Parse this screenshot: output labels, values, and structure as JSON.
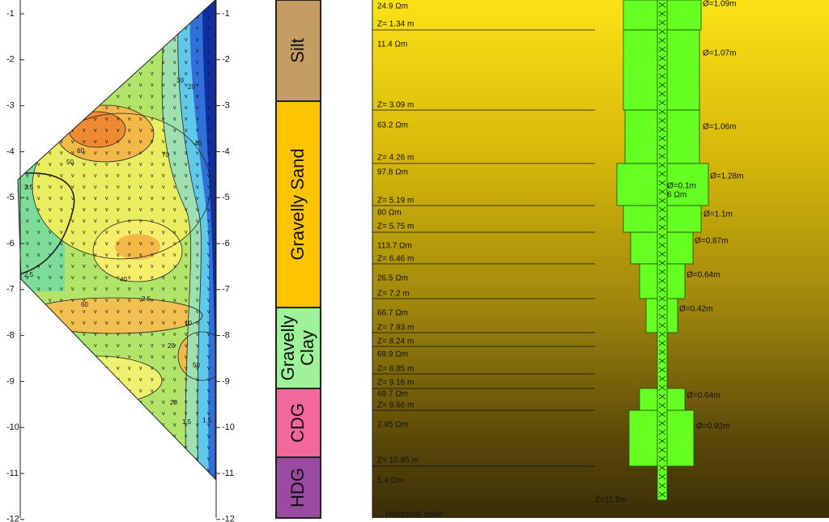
{
  "section": {
    "left_axis_ticks": [
      "-1",
      "-2",
      "-3",
      "-4",
      "-5",
      "-6",
      "-7",
      "-8",
      "-9",
      "-10",
      "-11",
      "-12"
    ],
    "right_axis_ticks": [
      "-1",
      "-2",
      "-3",
      "-4",
      "-5",
      "-6",
      "-7",
      "-8",
      "-9",
      "-10",
      "-11",
      "-12"
    ],
    "contour_labels": [
      "60",
      "50",
      "70",
      "40",
      "30",
      "20",
      "10",
      "2.5",
      "1.5",
      "2.5",
      "40",
      "60",
      "20",
      "50",
      "20",
      "1.5",
      "2.5"
    ]
  },
  "strata": [
    {
      "lines": [
        "Silt"
      ],
      "color": "#c59c62"
    },
    {
      "lines": [
        "Gravelly Sand"
      ],
      "color": "#ffc400"
    },
    {
      "lines": [
        "Gravelly",
        "Clay"
      ],
      "color": "#9ef29a"
    },
    {
      "lines": [
        "CDG"
      ],
      "color": "#f2689a"
    },
    {
      "lines": [
        "HDG"
      ],
      "color": "#9a4aa0"
    }
  ],
  "model": {
    "layers": [
      {
        "resistivity": "24.9 Ωm",
        "bottom": "Z= 1.34 m"
      },
      {
        "resistivity": "11.4 Ωm",
        "bottom": "Z= 3.09 m"
      },
      {
        "resistivity": "63.2 Ωm",
        "bottom": "Z= 4.26 m"
      },
      {
        "resistivity": "97.8 Ωm",
        "bottom": "Z= 5.19 m"
      },
      {
        "resistivity": "80 Ωm",
        "bottom": "Z= 5.75 m"
      },
      {
        "resistivity": "113.7 Ωm",
        "bottom": "Z= 6.46 m"
      },
      {
        "resistivity": "26.5 Ωm",
        "bottom": "Z= 7.2 m"
      },
      {
        "resistivity": "66.7 Ωm",
        "bottom": "Z= 7.93 m"
      },
      {
        "bottom": "Z= 8.24 m"
      },
      {
        "resistivity": "69.9 Ωm",
        "bottom": "Z= 8.85 m"
      },
      {
        "bottom": "Z= 9.16 m"
      },
      {
        "resistivity": "69.7 Ωm",
        "bottom": "Z= 9.66 m"
      },
      {
        "resistivity": "2.95 Ωm",
        "bottom": "Z= 10.85 m"
      },
      {
        "resistivity": "5.4 Ωm"
      }
    ],
    "pile": [
      "Ø=1.09m",
      "Ø=1.07m",
      "Ø=1.06m",
      "Ø=1.28m",
      "Ø=1.1m",
      "Ø=0.87m",
      "Ø=0.64m",
      "Ø=0.42m",
      "Ø=0.64m",
      "Ø=0.92m"
    ],
    "core": {
      "diameter": "Ø=0.1m",
      "resistivity": "6 Ωm"
    },
    "toe": "Z=11.6m",
    "scale_label": "Horizontal scale"
  }
}
